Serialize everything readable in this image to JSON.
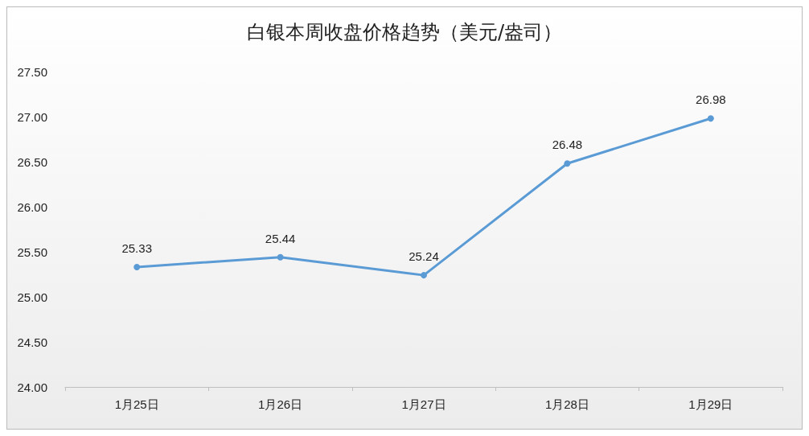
{
  "chart_data": {
    "type": "line",
    "title": "白银本周收盘价格趋势（美元/盎司）",
    "categories": [
      "1月25日",
      "1月26日",
      "1月27日",
      "1月28日",
      "1月29日"
    ],
    "series": [
      {
        "color": "#5b9bd5",
        "values": [
          25.33,
          25.44,
          25.24,
          26.48,
          26.98
        ]
      }
    ],
    "ylim": [
      24,
      27.5
    ],
    "yticks": [
      {
        "value": 24,
        "label": "24.00"
      },
      {
        "value": 24.5,
        "label": "24.50"
      },
      {
        "value": 25,
        "label": "25.00"
      },
      {
        "value": 25.5,
        "label": "25.50"
      },
      {
        "value": 26,
        "label": "26.00"
      },
      {
        "value": 26.5,
        "label": "26.50"
      },
      {
        "value": 27,
        "label": "27.00"
      },
      {
        "value": 27.5,
        "label": "27.50"
      }
    ],
    "data_labels": true,
    "marker": "circle",
    "line_style": "solid"
  }
}
